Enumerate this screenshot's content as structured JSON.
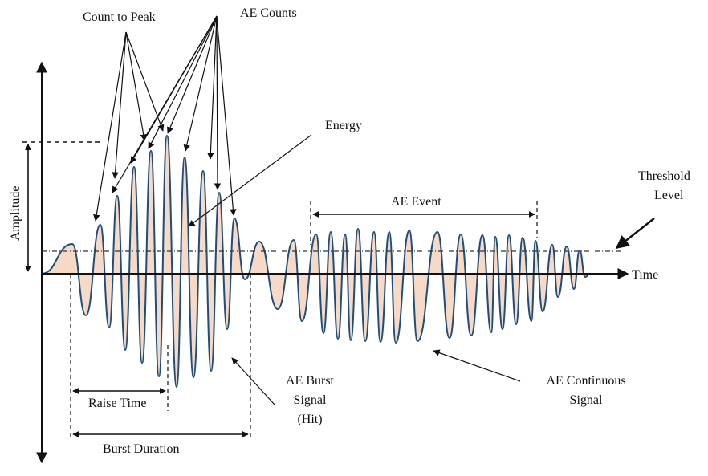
{
  "labels": {
    "count_to_peak": "Count to Peak",
    "ae_counts": "AE Counts",
    "energy": "Energy",
    "threshold_line1": "Threshold",
    "threshold_line2": "Level",
    "ae_event": "AE Event",
    "time": "Time",
    "amplitude": "Amplitude",
    "raise_time": "Raise Time",
    "burst_duration": "Burst Duration",
    "burst_line1": "AE Burst",
    "burst_line2": "Signal",
    "burst_line3": "(Hit)",
    "continuous_line1": "AE Continuous",
    "continuous_line2": "Signal"
  },
  "colors": {
    "signal": "#1f4e79",
    "energy_fill": "#f7d9c8",
    "ink": "#111111"
  }
}
